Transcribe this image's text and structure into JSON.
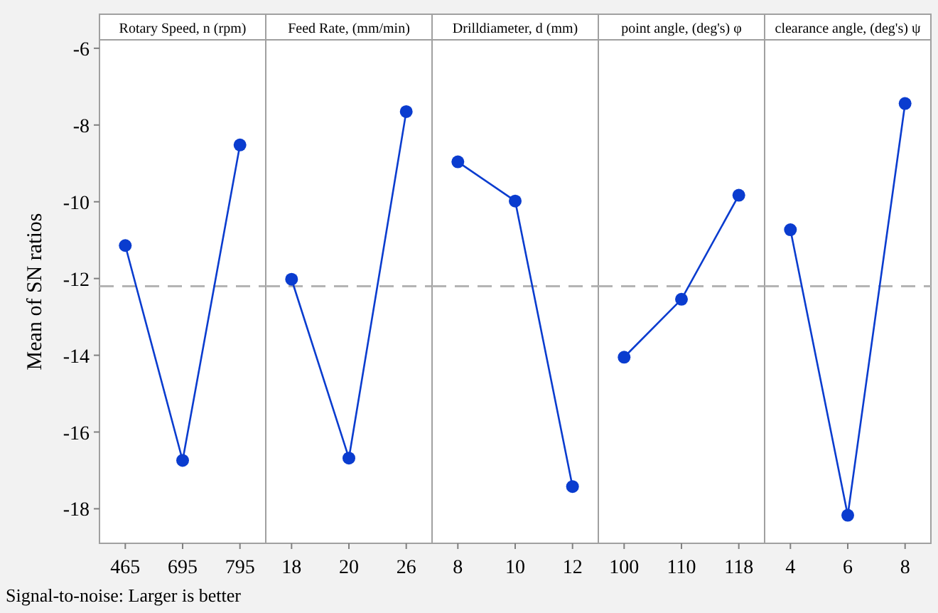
{
  "chart_data": [
    {
      "type": "line",
      "title": "Rotary Speed, n (rpm)",
      "ylabel": "Mean of SN ratios",
      "categories": [
        "465",
        "695",
        "795"
      ],
      "series": [
        {
          "color": "#0a3ccf",
          "values": [
            -11.14,
            -16.74,
            -8.52
          ]
        }
      ],
      "ylim": [
        -18.9,
        -5.78
      ],
      "yticks": [
        -18,
        -16,
        -14,
        -12,
        -10,
        -8,
        -6
      ],
      "marker": "circle",
      "line_style": "solid",
      "grid": false,
      "ref_lines": [
        {
          "axis": "y",
          "value": -12.2,
          "color": "#b4b4b4",
          "line_style": "dashed"
        }
      ],
      "annotations": [
        "Signal-to-noise: Larger is better"
      ]
    },
    {
      "type": "line",
      "title": "Feed Rate, (mm/min)",
      "categories": [
        "18",
        "20",
        "26"
      ],
      "series": [
        {
          "color": "#0a3ccf",
          "values": [
            -12.02,
            -16.68,
            -7.65
          ]
        }
      ],
      "ylim": [
        -18.9,
        -5.78
      ],
      "tick_labels": "x",
      "marker": "circle",
      "line_style": "solid",
      "grid": false,
      "ref_lines": [
        {
          "axis": "y",
          "value": -12.2,
          "color": "#b4b4b4",
          "line_style": "dashed"
        }
      ]
    },
    {
      "type": "line",
      "title": "Drilldiameter, d (mm)",
      "categories": [
        "8",
        "10",
        "12"
      ],
      "series": [
        {
          "color": "#0a3ccf",
          "values": [
            -8.96,
            -9.98,
            -17.42
          ]
        }
      ],
      "ylim": [
        -18.9,
        -5.78
      ],
      "tick_labels": "x",
      "marker": "circle",
      "line_style": "solid",
      "grid": false,
      "ref_lines": [
        {
          "axis": "y",
          "value": -12.2,
          "color": "#b4b4b4",
          "line_style": "dashed"
        }
      ]
    },
    {
      "type": "line",
      "title": "point angle, (deg's) φ",
      "categories": [
        "100",
        "110",
        "118"
      ],
      "series": [
        {
          "color": "#0a3ccf",
          "values": [
            -14.05,
            -12.54,
            -9.83
          ]
        }
      ],
      "ylim": [
        -18.9,
        -5.78
      ],
      "tick_labels": "x",
      "marker": "circle",
      "line_style": "solid",
      "grid": false,
      "ref_lines": [
        {
          "axis": "y",
          "value": -12.2,
          "color": "#b4b4b4",
          "line_style": "dashed"
        }
      ]
    },
    {
      "type": "line",
      "title": "clearance angle, (deg's) ψ",
      "categories": [
        "4",
        "6",
        "8"
      ],
      "series": [
        {
          "color": "#0a3ccf",
          "values": [
            -10.73,
            -18.17,
            -7.44
          ]
        }
      ],
      "ylim": [
        -18.9,
        -5.78
      ],
      "tick_labels": "x",
      "marker": "circle",
      "line_style": "solid",
      "grid": false,
      "ref_lines": [
        {
          "axis": "y",
          "value": -12.2,
          "color": "#b4b4b4",
          "line_style": "dashed"
        }
      ]
    }
  ]
}
